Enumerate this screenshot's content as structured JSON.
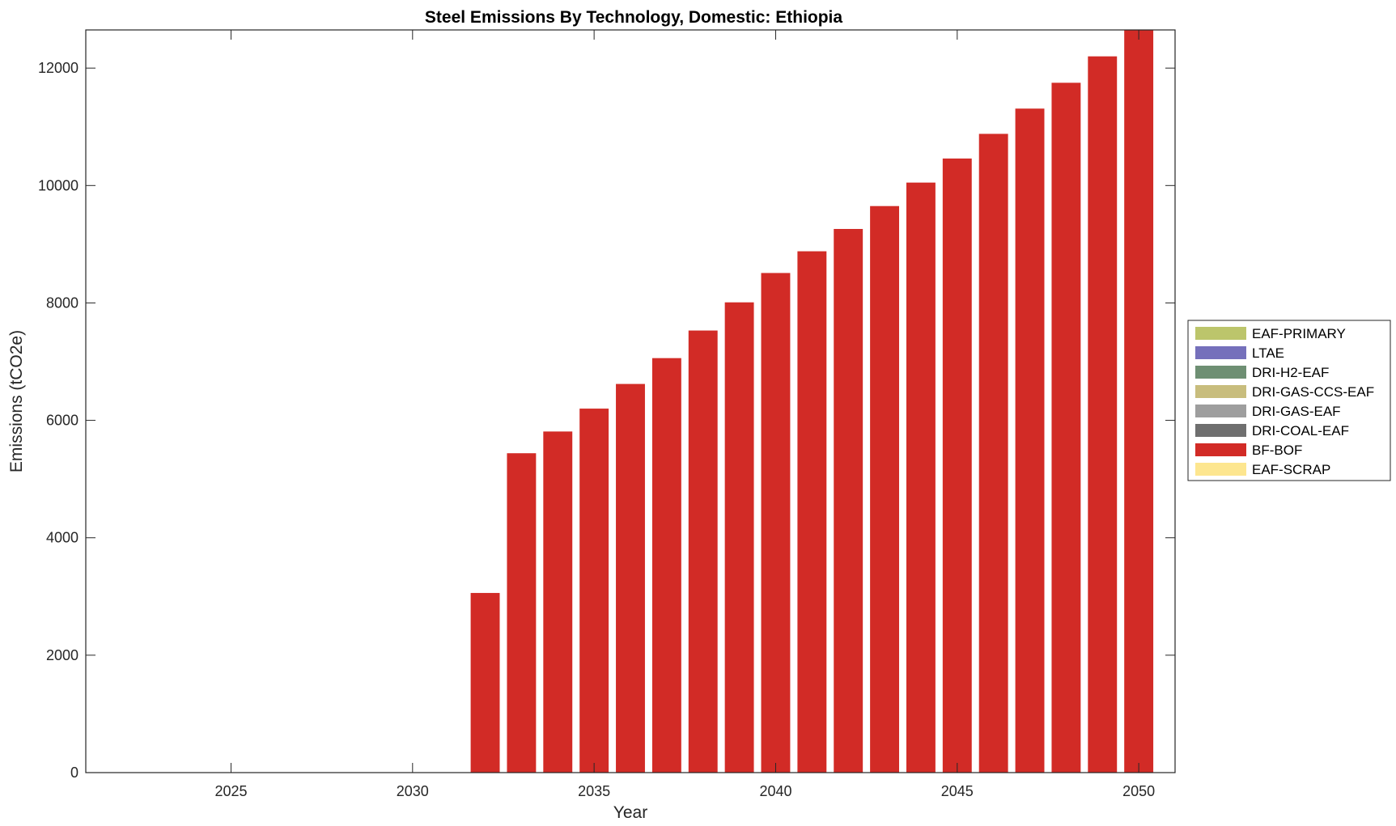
{
  "chart_data": {
    "type": "bar",
    "stacked": true,
    "title": "Steel Emissions By Technology, Domestic: Ethiopia",
    "xlabel": "Year",
    "ylabel": "Emissions (tCO2e)",
    "xlim": [
      2021,
      2051
    ],
    "ylim": [
      0,
      12650
    ],
    "xticks": [
      2025,
      2030,
      2035,
      2040,
      2045,
      2050
    ],
    "yticks": [
      0,
      2000,
      4000,
      6000,
      8000,
      10000,
      12000
    ],
    "x": [
      2021,
      2022,
      2023,
      2024,
      2025,
      2026,
      2027,
      2028,
      2029,
      2030,
      2031,
      2032,
      2033,
      2034,
      2035,
      2036,
      2037,
      2038,
      2039,
      2040,
      2041,
      2042,
      2043,
      2044,
      2045,
      2046,
      2047,
      2048,
      2049,
      2050
    ],
    "legend_position": "outside-right",
    "series": [
      {
        "name": "EAF-PRIMARY",
        "color": "#bcc56b",
        "values": [
          0,
          0,
          0,
          0,
          0,
          0,
          0,
          0,
          0,
          0,
          0,
          0,
          0,
          0,
          0,
          0,
          0,
          0,
          0,
          0,
          0,
          0,
          0,
          0,
          0,
          0,
          0,
          0,
          0,
          0
        ]
      },
      {
        "name": "LTAE",
        "color": "#7570bb",
        "values": [
          0,
          0,
          0,
          0,
          0,
          0,
          0,
          0,
          0,
          0,
          0,
          0,
          0,
          0,
          0,
          0,
          0,
          0,
          0,
          0,
          0,
          0,
          0,
          0,
          0,
          0,
          0,
          0,
          0,
          0
        ]
      },
      {
        "name": "DRI-H2-EAF",
        "color": "#6e8f73",
        "values": [
          0,
          0,
          0,
          0,
          0,
          0,
          0,
          0,
          0,
          0,
          0,
          0,
          0,
          0,
          0,
          0,
          0,
          0,
          0,
          0,
          0,
          0,
          0,
          0,
          0,
          0,
          0,
          0,
          0,
          0
        ]
      },
      {
        "name": "DRI-GAS-CCS-EAF",
        "color": "#c8bd7d",
        "values": [
          0,
          0,
          0,
          0,
          0,
          0,
          0,
          0,
          0,
          0,
          0,
          0,
          0,
          0,
          0,
          0,
          0,
          0,
          0,
          0,
          0,
          0,
          0,
          0,
          0,
          0,
          0,
          0,
          0,
          0
        ]
      },
      {
        "name": "DRI-GAS-EAF",
        "color": "#9e9e9e",
        "values": [
          0,
          0,
          0,
          0,
          0,
          0,
          0,
          0,
          0,
          0,
          0,
          0,
          0,
          0,
          0,
          0,
          0,
          0,
          0,
          0,
          0,
          0,
          0,
          0,
          0,
          0,
          0,
          0,
          0,
          0
        ]
      },
      {
        "name": "DRI-COAL-EAF",
        "color": "#6f6f6f",
        "values": [
          0,
          0,
          0,
          0,
          0,
          0,
          0,
          0,
          0,
          0,
          0,
          0,
          0,
          0,
          0,
          0,
          0,
          0,
          0,
          0,
          0,
          0,
          0,
          0,
          0,
          0,
          0,
          0,
          0,
          0
        ]
      },
      {
        "name": "BF-BOF",
        "color": "#d22b26",
        "values": [
          0,
          0,
          0,
          0,
          0,
          0,
          0,
          0,
          0,
          0,
          0,
          3060,
          5440,
          5810,
          6200,
          6620,
          7060,
          7530,
          8010,
          8510,
          8880,
          9260,
          9650,
          10050,
          10460,
          10880,
          11310,
          11750,
          12200,
          12650
        ]
      },
      {
        "name": "EAF-SCRAP",
        "color": "#fde68f",
        "values": [
          0,
          0,
          0,
          0,
          0,
          0,
          0,
          0,
          0,
          0,
          0,
          0,
          0,
          0,
          0,
          0,
          0,
          0,
          0,
          0,
          0,
          0,
          0,
          0,
          0,
          0,
          0,
          0,
          0,
          0
        ]
      }
    ]
  }
}
